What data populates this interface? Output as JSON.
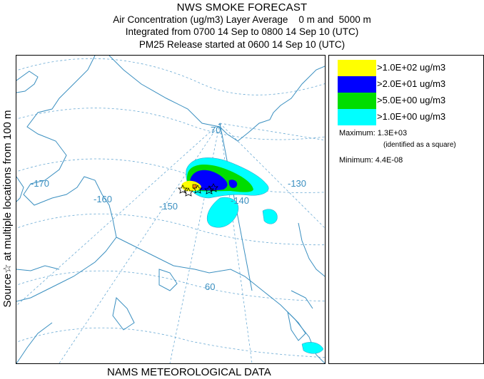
{
  "header": {
    "title": "NWS SMOKE FORECAST",
    "line2": "Air Concentration (ug/m3) Layer Average    0 m and  5000 m",
    "line3": "Integrated from 0700 14 Sep to 0800 14 Sep 10 (UTC)",
    "line4": "PM25 Release started at 0600 14 Sep 10 (UTC)"
  },
  "side_label": "Source☆  at multiple locations   from   100 m",
  "footer": "NAMS METEOROLOGICAL DATA",
  "legend": {
    "items": [
      {
        "label": ">1.0E+02 ug/m3",
        "color": "#ffff00"
      },
      {
        "label": ">2.0E+01 ug/m3",
        "color": "#0000ff"
      },
      {
        "label": ">5.0E+00 ug/m3",
        "color": "#00dd00"
      },
      {
        "label": ">1.0E+00 ug/m3",
        "color": "#00ffff"
      }
    ],
    "maximum": "Maximum: 1.3E+03",
    "max_note": "(identified as a square)",
    "minimum": "Minimum: 4.4E-08"
  },
  "map": {
    "graticule_labels": {
      "lon_170": "-170",
      "lon_160": "-160",
      "lon_150": "-150",
      "lon_140": "-140",
      "lon_130": "-130",
      "lat_70": "70",
      "lat_60": "60"
    },
    "line_color": "#3a8fc0"
  }
}
